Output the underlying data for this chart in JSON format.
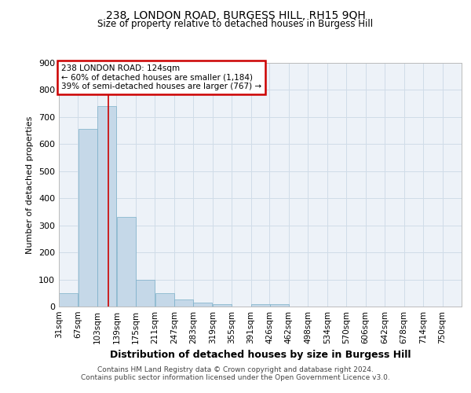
{
  "title1": "238, LONDON ROAD, BURGESS HILL, RH15 9QH",
  "title2": "Size of property relative to detached houses in Burgess Hill",
  "xlabel": "Distribution of detached houses by size in Burgess Hill",
  "ylabel": "Number of detached properties",
  "bin_labels": [
    "31sqm",
    "67sqm",
    "103sqm",
    "139sqm",
    "175sqm",
    "211sqm",
    "247sqm",
    "283sqm",
    "319sqm",
    "355sqm",
    "391sqm",
    "426sqm",
    "462sqm",
    "498sqm",
    "534sqm",
    "570sqm",
    "606sqm",
    "642sqm",
    "678sqm",
    "714sqm",
    "750sqm"
  ],
  "bar_values": [
    50,
    655,
    740,
    330,
    100,
    50,
    25,
    15,
    10,
    0,
    10,
    10,
    0,
    0,
    0,
    0,
    0,
    0,
    0,
    0,
    0
  ],
  "bar_color": "#c5d8e8",
  "bar_edgecolor": "#7aafc8",
  "grid_color": "#d0dce8",
  "background_color": "#edf2f8",
  "red_line_x": 124,
  "annotation_line1": "238 LONDON ROAD: 124sqm",
  "annotation_line2": "← 60% of detached houses are smaller (1,184)",
  "annotation_line3": "39% of semi-detached houses are larger (767) →",
  "annotation_box_color": "#ffffff",
  "annotation_edge_color": "#cc0000",
  "footer1": "Contains HM Land Registry data © Crown copyright and database right 2024.",
  "footer2": "Contains public sector information licensed under the Open Government Licence v3.0.",
  "ylim": [
    0,
    900
  ],
  "yticks": [
    0,
    100,
    200,
    300,
    400,
    500,
    600,
    700,
    800,
    900
  ],
  "bin_edges": [
    31,
    67,
    103,
    139,
    175,
    211,
    247,
    283,
    319,
    355,
    391,
    426,
    462,
    498,
    534,
    570,
    606,
    642,
    678,
    714,
    750
  ],
  "bin_width": 36
}
